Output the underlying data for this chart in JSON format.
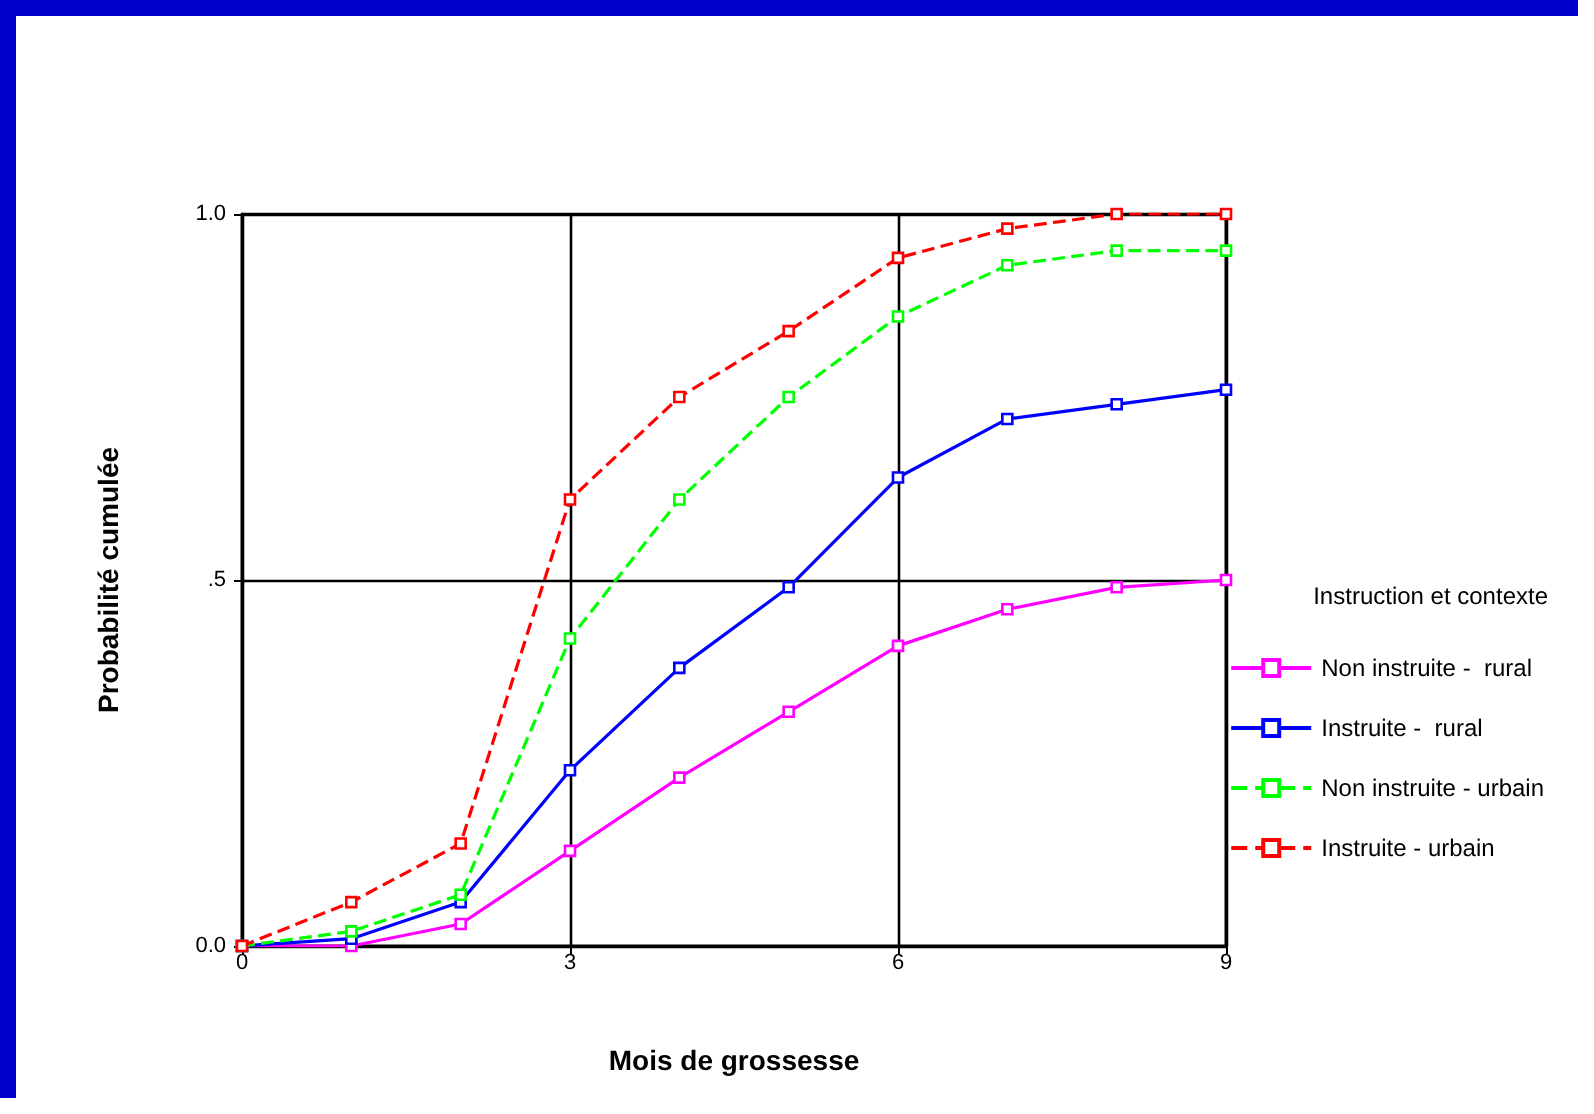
{
  "chart_data": {
    "type": "line",
    "xlabel": "Mois de grossesse",
    "ylabel": "Probabilité cumulée",
    "legend_title": "Instruction et contexte",
    "legend": "right",
    "grid": true,
    "marker": "square",
    "x": [
      0,
      1,
      2,
      3,
      4,
      5,
      6,
      7,
      8,
      9
    ],
    "xlim": [
      0,
      9
    ],
    "xticks": [
      0,
      3,
      6,
      9
    ],
    "ylim": [
      0,
      1
    ],
    "yticks": [
      {
        "value": 0,
        "label": "0.0"
      },
      {
        "value": 0.5,
        "label": ".5"
      },
      {
        "value": 1,
        "label": "1.0"
      }
    ],
    "series": [
      {
        "name": "Non instruite -  rural",
        "color": "#ff00ff",
        "line_style": "solid",
        "values": [
          0,
          0,
          0.03,
          0.13,
          0.23,
          0.32,
          0.41,
          0.46,
          0.49,
          0.5
        ]
      },
      {
        "name": "Instruite -  rural",
        "color": "#0000ff",
        "line_style": "solid",
        "values": [
          0,
          0.01,
          0.06,
          0.24,
          0.38,
          0.49,
          0.64,
          0.72,
          0.74,
          0.76
        ]
      },
      {
        "name": "Non instruite - urbain",
        "color": "#00ff00",
        "line_style": "dashed",
        "values": [
          0,
          0.02,
          0.07,
          0.42,
          0.61,
          0.75,
          0.86,
          0.93,
          0.95,
          0.95
        ]
      },
      {
        "name": "Instruite - urbain",
        "color": "#ff0000",
        "line_style": "dashed",
        "values": [
          0,
          0.06,
          0.14,
          0.61,
          0.75,
          0.84,
          0.94,
          0.98,
          1.0,
          1.0
        ]
      }
    ]
  }
}
